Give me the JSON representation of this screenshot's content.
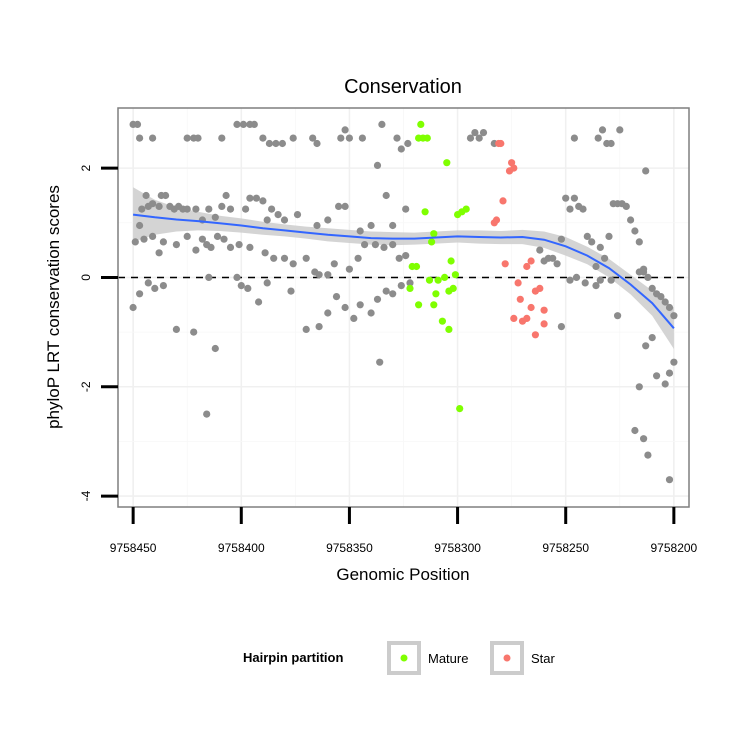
{
  "chart_data": {
    "type": "scatter",
    "title": "Conservation",
    "xlabel": "Genomic Position",
    "ylabel": "phyloP LRT conservation scores",
    "xlim": [
      9758457,
      9758193
    ],
    "x_reversed": true,
    "ylim": [
      -4.2,
      3.1
    ],
    "x_ticks": [
      9758450,
      9758400,
      9758350,
      9758300,
      9758250,
      9758200
    ],
    "y_ticks": [
      2,
      0,
      -2,
      -4
    ],
    "reference_line": {
      "y": 0,
      "style": "dashed"
    },
    "grid": true,
    "legend": {
      "title": "Hairpin partition",
      "position": "bottom",
      "entries": [
        {
          "label": "Mature",
          "color": "#7fff00"
        },
        {
          "label": "Star",
          "color": "#f8766d"
        }
      ]
    },
    "colors": {
      "other": "#8c8c8c",
      "Mature": "#7fff00",
      "Star": "#f8766d",
      "smooth": "#3366ff",
      "ribbon": "#cccccc"
    },
    "series": [
      {
        "group": "other",
        "points": [
          [
            9758450,
            2.8
          ],
          [
            9758448,
            2.8
          ],
          [
            9758447,
            2.55
          ],
          [
            9758441,
            2.55
          ],
          [
            9758425,
            2.55
          ],
          [
            9758422,
            2.55
          ],
          [
            9758420,
            2.55
          ],
          [
            9758409,
            2.55
          ],
          [
            9758402,
            2.8
          ],
          [
            9758399,
            2.8
          ],
          [
            9758396,
            2.8
          ],
          [
            9758394,
            2.8
          ],
          [
            9758390,
            2.55
          ],
          [
            9758387,
            2.45
          ],
          [
            9758384,
            2.45
          ],
          [
            9758381,
            2.45
          ],
          [
            9758376,
            2.55
          ],
          [
            9758367,
            2.55
          ],
          [
            9758365,
            2.45
          ],
          [
            9758354,
            2.55
          ],
          [
            9758352,
            2.7
          ],
          [
            9758350,
            2.55
          ],
          [
            9758344,
            2.55
          ],
          [
            9758337,
            2.05
          ],
          [
            9758335,
            2.8
          ],
          [
            9758328,
            2.55
          ],
          [
            9758326,
            2.35
          ],
          [
            9758323,
            2.45
          ],
          [
            9758294,
            2.55
          ],
          [
            9758292,
            2.65
          ],
          [
            9758290,
            2.55
          ],
          [
            9758288,
            2.65
          ],
          [
            9758283,
            2.45
          ],
          [
            9758246,
            2.55
          ],
          [
            9758235,
            2.55
          ],
          [
            9758233,
            2.7
          ],
          [
            9758231,
            2.45
          ],
          [
            9758229,
            2.45
          ],
          [
            9758225,
            2.7
          ],
          [
            9758450,
            -0.55
          ],
          [
            9758449,
            0.65
          ],
          [
            9758447,
            0.95
          ],
          [
            9758446,
            1.25
          ],
          [
            9758444,
            1.5
          ],
          [
            9758443,
            1.3
          ],
          [
            9758441,
            1.35
          ],
          [
            9758438,
            1.3
          ],
          [
            9758437,
            1.5
          ],
          [
            9758435,
            1.5
          ],
          [
            9758433,
            1.3
          ],
          [
            9758431,
            1.25
          ],
          [
            9758429,
            1.3
          ],
          [
            9758427,
            1.25
          ],
          [
            9758425,
            1.25
          ],
          [
            9758421,
            1.25
          ],
          [
            9758418,
            1.05
          ],
          [
            9758415,
            1.25
          ],
          [
            9758412,
            1.1
          ],
          [
            9758409,
            1.3
          ],
          [
            9758407,
            1.5
          ],
          [
            9758405,
            1.25
          ],
          [
            9758398,
            1.25
          ],
          [
            9758396,
            1.45
          ],
          [
            9758393,
            1.45
          ],
          [
            9758390,
            1.4
          ],
          [
            9758388,
            1.05
          ],
          [
            9758386,
            1.25
          ],
          [
            9758383,
            1.15
          ],
          [
            9758380,
            1.05
          ],
          [
            9758374,
            1.15
          ],
          [
            9758365,
            0.95
          ],
          [
            9758360,
            1.05
          ],
          [
            9758355,
            1.3
          ],
          [
            9758352,
            1.3
          ],
          [
            9758345,
            0.85
          ],
          [
            9758340,
            0.95
          ],
          [
            9758333,
            1.5
          ],
          [
            9758330,
            0.95
          ],
          [
            9758324,
            1.25
          ],
          [
            9758445,
            0.7
          ],
          [
            9758441,
            0.75
          ],
          [
            9758438,
            0.45
          ],
          [
            9758436,
            0.65
          ],
          [
            9758430,
            0.6
          ],
          [
            9758425,
            0.75
          ],
          [
            9758421,
            0.5
          ],
          [
            9758418,
            0.7
          ],
          [
            9758416,
            0.6
          ],
          [
            9758414,
            0.55
          ],
          [
            9758411,
            0.75
          ],
          [
            9758408,
            0.7
          ],
          [
            9758405,
            0.55
          ],
          [
            9758401,
            0.6
          ],
          [
            9758396,
            0.55
          ],
          [
            9758389,
            0.45
          ],
          [
            9758385,
            0.35
          ],
          [
            9758380,
            0.35
          ],
          [
            9758376,
            0.25
          ],
          [
            9758370,
            0.35
          ],
          [
            9758366,
            0.1
          ],
          [
            9758364,
            0.05
          ],
          [
            9758360,
            0.05
          ],
          [
            9758357,
            0.25
          ],
          [
            9758350,
            0.15
          ],
          [
            9758346,
            0.35
          ],
          [
            9758343,
            0.6
          ],
          [
            9758338,
            0.6
          ],
          [
            9758334,
            0.55
          ],
          [
            9758330,
            0.6
          ],
          [
            9758327,
            0.35
          ],
          [
            9758324,
            0.4
          ],
          [
            9758447,
            -0.3
          ],
          [
            9758443,
            -0.1
          ],
          [
            9758440,
            -0.2
          ],
          [
            9758436,
            -0.15
          ],
          [
            9758415,
            0.0
          ],
          [
            9758402,
            0.0
          ],
          [
            9758400,
            -0.15
          ],
          [
            9758397,
            -0.2
          ],
          [
            9758392,
            -0.45
          ],
          [
            9758388,
            -0.1
          ],
          [
            9758377,
            -0.25
          ],
          [
            9758370,
            -0.95
          ],
          [
            9758364,
            -0.9
          ],
          [
            9758360,
            -0.65
          ],
          [
            9758356,
            -0.35
          ],
          [
            9758352,
            -0.55
          ],
          [
            9758348,
            -0.75
          ],
          [
            9758345,
            -0.5
          ],
          [
            9758340,
            -0.65
          ],
          [
            9758337,
            -0.4
          ],
          [
            9758333,
            -0.25
          ],
          [
            9758330,
            -0.3
          ],
          [
            9758326,
            -0.15
          ],
          [
            9758322,
            -0.1
          ],
          [
            9758430,
            -0.95
          ],
          [
            9758422,
            -1.0
          ],
          [
            9758412,
            -1.3
          ],
          [
            9758416,
            -2.5
          ],
          [
            9758336,
            -1.55
          ],
          [
            9758262,
            0.5
          ],
          [
            9758260,
            0.3
          ],
          [
            9758258,
            0.35
          ],
          [
            9758256,
            0.35
          ],
          [
            9758254,
            0.25
          ],
          [
            9758252,
            0.7
          ],
          [
            9758250,
            1.45
          ],
          [
            9758248,
            1.25
          ],
          [
            9758246,
            1.45
          ],
          [
            9758244,
            1.3
          ],
          [
            9758242,
            1.25
          ],
          [
            9758240,
            0.75
          ],
          [
            9758238,
            0.65
          ],
          [
            9758236,
            0.2
          ],
          [
            9758234,
            0.55
          ],
          [
            9758232,
            0.35
          ],
          [
            9758230,
            0.75
          ],
          [
            9758228,
            1.35
          ],
          [
            9758226,
            1.35
          ],
          [
            9758224,
            1.35
          ],
          [
            9758222,
            1.3
          ],
          [
            9758220,
            1.05
          ],
          [
            9758218,
            0.85
          ],
          [
            9758216,
            0.65
          ],
          [
            9758214,
            0.15
          ],
          [
            9758213,
            1.95
          ],
          [
            9758252,
            -0.9
          ],
          [
            9758248,
            -0.05
          ],
          [
            9758245,
            0.0
          ],
          [
            9758241,
            -0.1
          ],
          [
            9758236,
            -0.15
          ],
          [
            9758234,
            -0.05
          ],
          [
            9758229,
            -0.05
          ],
          [
            9758226,
            -0.7
          ],
          [
            9758216,
            0.1
          ],
          [
            9758214,
            0.1
          ],
          [
            9758212,
            0.0
          ],
          [
            9758210,
            -0.2
          ],
          [
            9758208,
            -0.3
          ],
          [
            9758206,
            -0.35
          ],
          [
            9758204,
            -0.45
          ],
          [
            9758202,
            -0.55
          ],
          [
            9758200,
            -0.7
          ],
          [
            9758210,
            -1.1
          ],
          [
            9758213,
            -1.25
          ],
          [
            9758216,
            -2.0
          ],
          [
            9758218,
            -2.8
          ],
          [
            9758214,
            -2.95
          ],
          [
            9758208,
            -1.8
          ],
          [
            9758204,
            -1.95
          ],
          [
            9758202,
            -1.75
          ],
          [
            9758200,
            -1.55
          ],
          [
            9758212,
            -3.25
          ],
          [
            9758202,
            -3.7
          ]
        ]
      },
      {
        "group": "Mature",
        "points": [
          [
            9758317,
            2.8
          ],
          [
            9758318,
            2.55
          ],
          [
            9758316,
            2.55
          ],
          [
            9758314,
            2.55
          ],
          [
            9758305,
            2.1
          ],
          [
            9758300,
            1.15
          ],
          [
            9758298,
            1.2
          ],
          [
            9758296,
            1.25
          ],
          [
            9758315,
            1.2
          ],
          [
            9758311,
            0.8
          ],
          [
            9758312,
            0.65
          ],
          [
            9758321,
            0.2
          ],
          [
            9758319,
            0.2
          ],
          [
            9758303,
            0.3
          ],
          [
            9758301,
            0.05
          ],
          [
            9758306,
            0.0
          ],
          [
            9758309,
            -0.05
          ],
          [
            9758313,
            -0.05
          ],
          [
            9758302,
            -0.2
          ],
          [
            9758304,
            -0.25
          ],
          [
            9758310,
            -0.3
          ],
          [
            9758322,
            -0.2
          ],
          [
            9758318,
            -0.5
          ],
          [
            9758311,
            -0.5
          ],
          [
            9758307,
            -0.8
          ],
          [
            9758304,
            -0.95
          ],
          [
            9758299,
            -2.4
          ]
        ]
      },
      {
        "group": "Star",
        "points": [
          [
            9758281,
            2.45
          ],
          [
            9758280,
            2.45
          ],
          [
            9758275,
            2.1
          ],
          [
            9758274,
            2.0
          ],
          [
            9758276,
            1.95
          ],
          [
            9758279,
            1.4
          ],
          [
            9758283,
            1.0
          ],
          [
            9758282,
            1.05
          ],
          [
            9758278,
            0.25
          ],
          [
            9758268,
            0.2
          ],
          [
            9758266,
            0.3
          ],
          [
            9758272,
            -0.1
          ],
          [
            9758264,
            -0.25
          ],
          [
            9758262,
            -0.2
          ],
          [
            9758271,
            -0.4
          ],
          [
            9758266,
            -0.55
          ],
          [
            9758260,
            -0.6
          ],
          [
            9758268,
            -0.75
          ],
          [
            9758274,
            -0.75
          ],
          [
            9758270,
            -0.8
          ],
          [
            9758260,
            -0.85
          ],
          [
            9758264,
            -1.05
          ]
        ]
      }
    ],
    "smooth": {
      "method": "loess",
      "x": [
        9758450,
        9758440,
        9758430,
        9758420,
        9758410,
        9758400,
        9758390,
        9758380,
        9758370,
        9758360,
        9758350,
        9758340,
        9758330,
        9758320,
        9758310,
        9758300,
        9758290,
        9758280,
        9758270,
        9758260,
        9758250,
        9758240,
        9758230,
        9758220,
        9758210,
        9758200
      ],
      "y": [
        1.15,
        1.1,
        1.06,
        1.03,
        0.99,
        0.95,
        0.9,
        0.86,
        0.82,
        0.78,
        0.75,
        0.72,
        0.71,
        0.71,
        0.73,
        0.75,
        0.74,
        0.73,
        0.74,
        0.69,
        0.57,
        0.4,
        0.17,
        -0.13,
        -0.47,
        -0.93
      ],
      "upper": [
        1.65,
        1.42,
        1.28,
        1.2,
        1.13,
        1.08,
        1.02,
        0.97,
        0.93,
        0.9,
        0.87,
        0.84,
        0.83,
        0.82,
        0.84,
        0.86,
        0.86,
        0.85,
        0.87,
        0.84,
        0.74,
        0.56,
        0.34,
        0.05,
        -0.24,
        -0.55
      ],
      "lower": [
        0.65,
        0.78,
        0.84,
        0.86,
        0.85,
        0.82,
        0.78,
        0.75,
        0.71,
        0.66,
        0.63,
        0.6,
        0.59,
        0.6,
        0.62,
        0.64,
        0.62,
        0.61,
        0.61,
        0.54,
        0.4,
        0.24,
        0.0,
        -0.31,
        -0.7,
        -1.31
      ]
    }
  }
}
